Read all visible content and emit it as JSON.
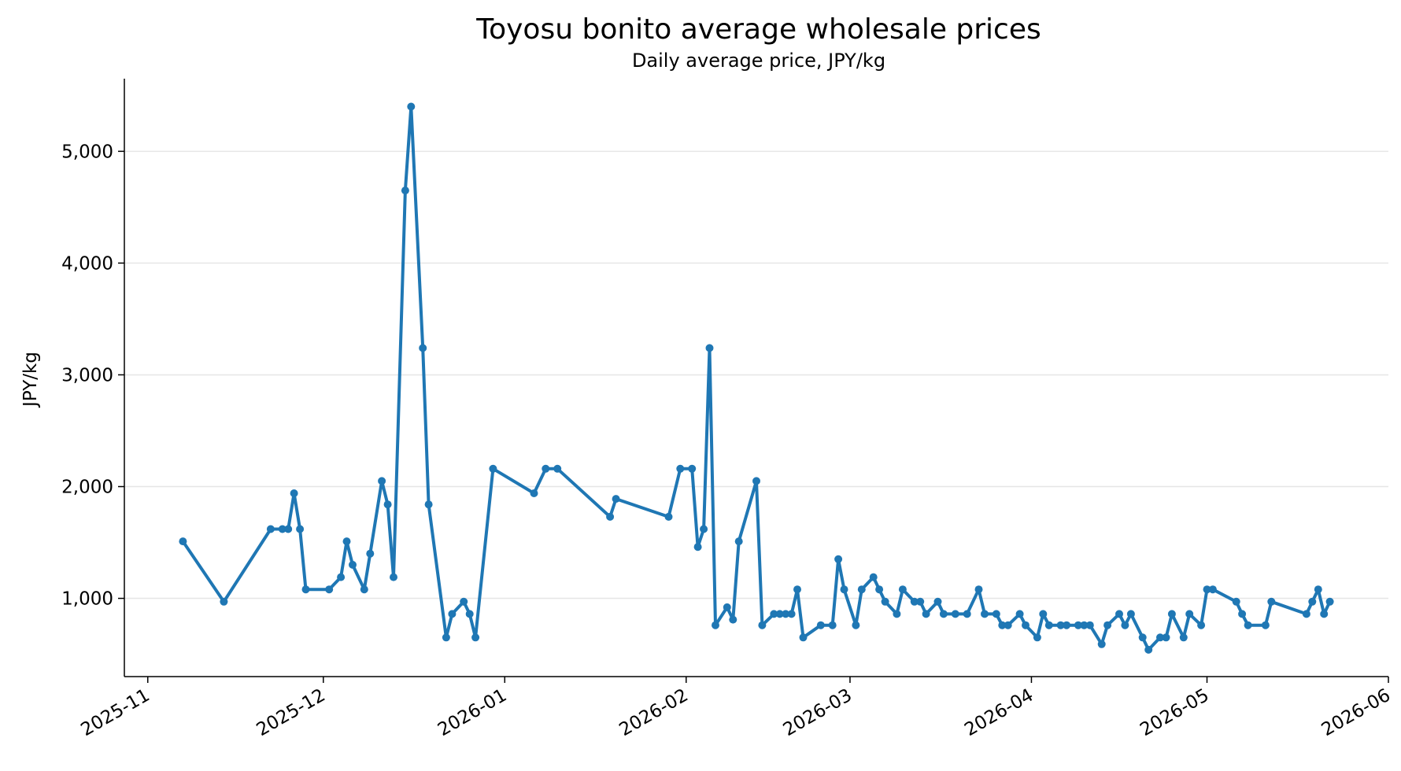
{
  "chart_data": {
    "type": "line",
    "title": "Toyosu bonito average wholesale prices",
    "subtitle": "Daily average price, JPY/kg",
    "ylabel": "JPY/kg",
    "xlabel": "",
    "x_axis_type": "date",
    "xlim": [
      "2025-10-28",
      "2026-06-01"
    ],
    "ylim": [
      300,
      5650
    ],
    "grid": "horizontal",
    "legend": "none",
    "colors": {
      "series": "#1f77b4",
      "grid": "#e6e6e6",
      "axis": "#000000"
    },
    "x_ticks": [
      {
        "date": "2025-11-01",
        "label": "2025-11"
      },
      {
        "date": "2025-12-01",
        "label": "2025-12"
      },
      {
        "date": "2026-01-01",
        "label": "2026-01"
      },
      {
        "date": "2026-02-01",
        "label": "2026-02"
      },
      {
        "date": "2026-03-01",
        "label": "2026-03"
      },
      {
        "date": "2026-04-01",
        "label": "2026-04"
      },
      {
        "date": "2026-05-01",
        "label": "2026-05"
      },
      {
        "date": "2026-06-01",
        "label": "2026-06"
      }
    ],
    "y_ticks": [
      {
        "value": 1000,
        "label": "1,000"
      },
      {
        "value": 2000,
        "label": "2,000"
      },
      {
        "value": 3000,
        "label": "3,000"
      },
      {
        "value": 4000,
        "label": "4,000"
      },
      {
        "value": 5000,
        "label": "5,000"
      }
    ],
    "series": [
      {
        "x": [
          "2025-11-07",
          "2025-11-14",
          "2025-11-22",
          "2025-11-24",
          "2025-11-25",
          "2025-11-26",
          "2025-11-27",
          "2025-11-28",
          "2025-12-02",
          "2025-12-04",
          "2025-12-05",
          "2025-12-06",
          "2025-12-08",
          "2025-12-09",
          "2025-12-11",
          "2025-12-12",
          "2025-12-13",
          "2025-12-15",
          "2025-12-16",
          "2025-12-18",
          "2025-12-19",
          "2025-12-22",
          "2025-12-23",
          "2025-12-25",
          "2025-12-26",
          "2025-12-27",
          "2025-12-30",
          "2026-01-06",
          "2026-01-08",
          "2026-01-10",
          "2026-01-19",
          "2026-01-20",
          "2026-01-29",
          "2026-01-31",
          "2026-02-02",
          "2026-02-03",
          "2026-02-04",
          "2026-02-05",
          "2026-02-06",
          "2026-02-08",
          "2026-02-09",
          "2026-02-10",
          "2026-02-13",
          "2026-02-14",
          "2026-02-16",
          "2026-02-17",
          "2026-02-18",
          "2026-02-19",
          "2026-02-20",
          "2026-02-21",
          "2026-02-24",
          "2026-02-26",
          "2026-02-27",
          "2026-02-28",
          "2026-03-02",
          "2026-03-03",
          "2026-03-05",
          "2026-03-06",
          "2026-03-07",
          "2026-03-09",
          "2026-03-10",
          "2026-03-12",
          "2026-03-13",
          "2026-03-14",
          "2026-03-16",
          "2026-03-17",
          "2026-03-19",
          "2026-03-21",
          "2026-03-23",
          "2026-03-24",
          "2026-03-26",
          "2026-03-27",
          "2026-03-28",
          "2026-03-30",
          "2026-03-31",
          "2026-04-02",
          "2026-04-03",
          "2026-04-04",
          "2026-04-06",
          "2026-04-07",
          "2026-04-09",
          "2026-04-10",
          "2026-04-11",
          "2026-04-13",
          "2026-04-14",
          "2026-04-16",
          "2026-04-17",
          "2026-04-18",
          "2026-04-20",
          "2026-04-21",
          "2026-04-23",
          "2026-04-24",
          "2026-04-25",
          "2026-04-27",
          "2026-04-28",
          "2026-04-30",
          "2026-05-01",
          "2026-05-02",
          "2026-05-06",
          "2026-05-07",
          "2026-05-08",
          "2026-05-11",
          "2026-05-12",
          "2026-05-18",
          "2026-05-19",
          "2026-05-20",
          "2026-05-21",
          "2026-05-22"
        ],
        "y": [
          1510,
          970,
          1620,
          1620,
          1620,
          1940,
          1620,
          1080,
          1080,
          1190,
          1510,
          1300,
          1080,
          1400,
          2050,
          1840,
          1190,
          4650,
          5400,
          3240,
          1840,
          650,
          860,
          970,
          860,
          650,
          2160,
          1940,
          2160,
          2160,
          1730,
          1890,
          1730,
          2160,
          2160,
          1460,
          1620,
          3240,
          760,
          920,
          810,
          1510,
          2050,
          760,
          860,
          860,
          860,
          860,
          1080,
          650,
          760,
          760,
          1350,
          1080,
          760,
          1080,
          1190,
          1080,
          970,
          860,
          1080,
          970,
          970,
          860,
          970,
          860,
          860,
          860,
          1080,
          860,
          860,
          760,
          760,
          860,
          760,
          650,
          860,
          760,
          760,
          760,
          760,
          760,
          760,
          590,
          760,
          860,
          760,
          860,
          650,
          540,
          650,
          650,
          860,
          650,
          860,
          760,
          1080,
          1080,
          970,
          860,
          760,
          760,
          970,
          860,
          970,
          1080,
          860,
          970
        ]
      }
    ]
  }
}
